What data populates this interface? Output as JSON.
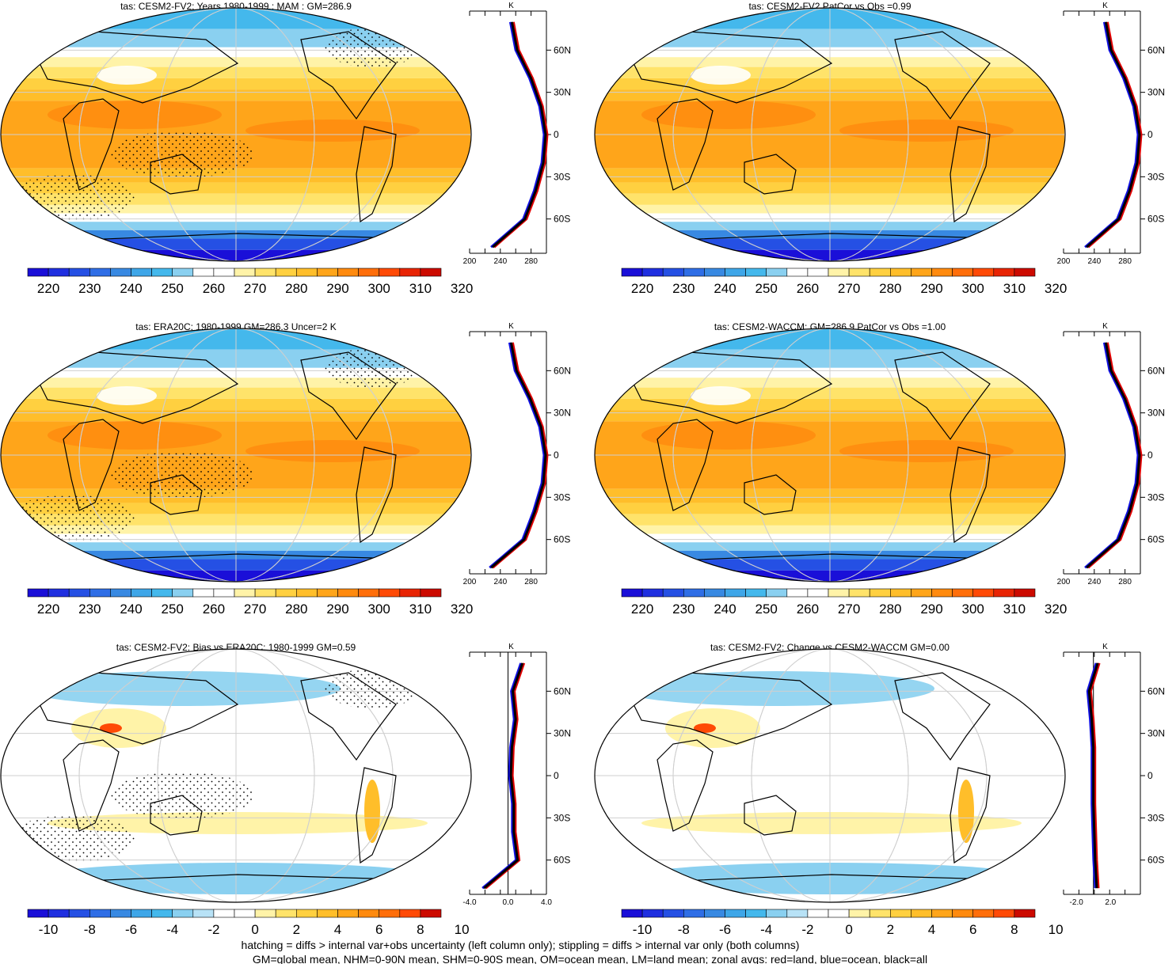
{
  "palettes": {
    "abs": [
      "#1a0fd8",
      "#1f2fe0",
      "#2550e4",
      "#2f6ee6",
      "#3889e2",
      "#3ea6e8",
      "#44b8ec",
      "#8ad0f0",
      "#ffffff",
      "#ffffff",
      "#fff3a8",
      "#ffe36a",
      "#ffd040",
      "#ffbe2a",
      "#ffa51a",
      "#ff8a0e",
      "#ff6e0a",
      "#ff4a06",
      "#e82404",
      "#cc0a00"
    ],
    "diff": [
      "#1a0fd8",
      "#1f2fe0",
      "#2550e4",
      "#2f6ee6",
      "#3889e2",
      "#3ea6e8",
      "#44b8ec",
      "#8ad0f0",
      "#b8e2f6",
      "#ffffff",
      "#ffffff",
      "#fff3a8",
      "#ffe36a",
      "#ffd040",
      "#ffbe2a",
      "#ffa51a",
      "#ff8a0e",
      "#ff6e0a",
      "#ff4a06",
      "#cc0a00"
    ]
  },
  "colorbars": {
    "abs": {
      "labels": [
        "220",
        "230",
        "240",
        "250",
        "260",
        "270",
        "280",
        "290",
        "300",
        "310",
        "320"
      ]
    },
    "diff": {
      "labels": [
        "-10",
        "-8",
        "-6",
        "-4",
        "-2",
        "0",
        "2",
        "4",
        "6",
        "8",
        "10"
      ]
    }
  },
  "lat_labels": [
    "60N",
    "30N",
    "0",
    "30S",
    "60S"
  ],
  "units": "K",
  "panels": [
    {
      "title": "tas: CESM2-FV2: Years 1980-1999 : MAM : GM=286.9",
      "kind": "abs",
      "stipple": true,
      "zonal_ticks": [
        "200",
        "240",
        "280"
      ]
    },
    {
      "title": "tas: CESM2-FV2 PatCor vs Obs =0.99",
      "kind": "abs",
      "stipple": false,
      "zonal_ticks": [
        "200",
        "240",
        "280"
      ]
    },
    {
      "title": "tas: ERA20C: 1980-1999 GM=286.3 Uncer=2 K",
      "kind": "abs",
      "stipple": true,
      "zonal_ticks": [
        "200",
        "240",
        "280"
      ]
    },
    {
      "title": "tas: CESM2-WACCM: GM=286.9 PatCor vs Obs =1.00",
      "kind": "abs",
      "stipple": false,
      "zonal_ticks": [
        "200",
        "240",
        "280"
      ]
    },
    {
      "title": "tas: CESM2-FV2: Bias vs ERA20C: 1980-1999 GM=0.59",
      "kind": "diff",
      "stipple": true,
      "zonal_ticks": [
        "-4.0",
        "0.0",
        "4.0"
      ]
    },
    {
      "title": "tas: CESM2-FV2: Change vs CESM2-WACCM GM=0.00",
      "kind": "diff",
      "stipple": false,
      "zonal_ticks": [
        "-2.0",
        "2.0"
      ]
    }
  ],
  "footer": {
    "line1": "hatching = diffs > internal var+obs uncertainty (left column only); stippling = diffs > internal var only (both columns)",
    "line2": "GM=global mean, NHM=0-90N mean, SHM=0-90S mean, OM=ocean mean, LM=land mean; zonal avgs: red=land, blue=ocean, black=all"
  },
  "chart_data": [
    {
      "type": "heatmap",
      "title": "tas: CESM2-FV2: Years 1980-1999 : MAM : GM=286.9",
      "colorbar_levels": [
        220,
        230,
        240,
        250,
        260,
        270,
        280,
        290,
        300,
        310,
        320
      ],
      "units": "K",
      "zonal_mean": {
        "lat_labels": [
          "60N",
          "30N",
          "0",
          "30S",
          "60S"
        ],
        "x_ticks": [
          200,
          240,
          280
        ],
        "lat": [
          80,
          60,
          40,
          20,
          0,
          -20,
          -40,
          -60,
          -80
        ],
        "all": [
          255,
          262,
          280,
          293,
          299,
          296,
          286,
          272,
          230
        ]
      }
    },
    {
      "type": "heatmap",
      "title": "tas: CESM2-FV2 PatCor vs Obs =0.99",
      "colorbar_levels": [
        220,
        230,
        240,
        250,
        260,
        270,
        280,
        290,
        300,
        310,
        320
      ],
      "units": "K",
      "zonal_mean": {
        "lat_labels": [
          "60N",
          "30N",
          "0",
          "30S",
          "60S"
        ],
        "x_ticks": [
          200,
          240,
          280
        ],
        "lat": [
          80,
          60,
          40,
          20,
          0,
          -20,
          -40,
          -60,
          -80
        ],
        "all": [
          255,
          262,
          280,
          293,
          299,
          296,
          286,
          272,
          230
        ]
      }
    },
    {
      "type": "heatmap",
      "title": "tas: ERA20C: 1980-1999 GM=286.3 Uncer=2 K",
      "colorbar_levels": [
        220,
        230,
        240,
        250,
        260,
        270,
        280,
        290,
        300,
        310,
        320
      ],
      "units": "K",
      "zonal_mean": {
        "lat_labels": [
          "60N",
          "30N",
          "0",
          "30S",
          "60S"
        ],
        "x_ticks": [
          200,
          240,
          280
        ],
        "lat": [
          80,
          60,
          40,
          20,
          0,
          -20,
          -40,
          -60,
          -80
        ],
        "all": [
          254,
          261,
          279,
          293,
          299,
          296,
          285,
          271,
          228
        ]
      }
    },
    {
      "type": "heatmap",
      "title": "tas: CESM2-WACCM: GM=286.9 PatCor vs Obs =1.00",
      "colorbar_levels": [
        220,
        230,
        240,
        250,
        260,
        270,
        280,
        290,
        300,
        310,
        320
      ],
      "units": "K",
      "zonal_mean": {
        "lat_labels": [
          "60N",
          "30N",
          "0",
          "30S",
          "60S"
        ],
        "x_ticks": [
          200,
          240,
          280
        ],
        "lat": [
          80,
          60,
          40,
          20,
          0,
          -20,
          -40,
          -60,
          -80
        ],
        "all": [
          255,
          262,
          280,
          293,
          299,
          296,
          286,
          272,
          230
        ]
      }
    },
    {
      "type": "heatmap",
      "title": "tas: CESM2-FV2: Bias vs ERA20C: 1980-1999 GM=0.59",
      "colorbar_levels": [
        -10,
        -8,
        -6,
        -4,
        -2,
        0,
        2,
        4,
        6,
        8,
        10
      ],
      "units": "K",
      "zonal_mean": {
        "lat_labels": [
          "60N",
          "30N",
          "0",
          "30S",
          "60S"
        ],
        "x_ticks": [
          -4.0,
          0.0,
          4.0
        ],
        "lat": [
          80,
          60,
          40,
          20,
          0,
          -20,
          -40,
          -60,
          -80
        ],
        "all": [
          1.5,
          0.5,
          0.8,
          0.4,
          0.3,
          0.6,
          0.6,
          1.0,
          -2.5
        ]
      }
    },
    {
      "type": "heatmap",
      "title": "tas: CESM2-FV2: Change vs CESM2-WACCM GM=0.00",
      "colorbar_levels": [
        -10,
        -8,
        -6,
        -4,
        -2,
        0,
        2,
        4,
        6,
        8,
        10
      ],
      "units": "K",
      "zonal_mean": {
        "lat_labels": [
          "60N",
          "30N",
          "0",
          "30S",
          "60S"
        ],
        "x_ticks": [
          -2.0,
          2.0
        ],
        "lat": [
          80,
          60,
          40,
          20,
          0,
          -20,
          -40,
          -60,
          -80
        ],
        "all": [
          0.5,
          -0.5,
          -0.2,
          0.0,
          0.0,
          0.0,
          0.1,
          0.2,
          0.4
        ]
      }
    }
  ]
}
